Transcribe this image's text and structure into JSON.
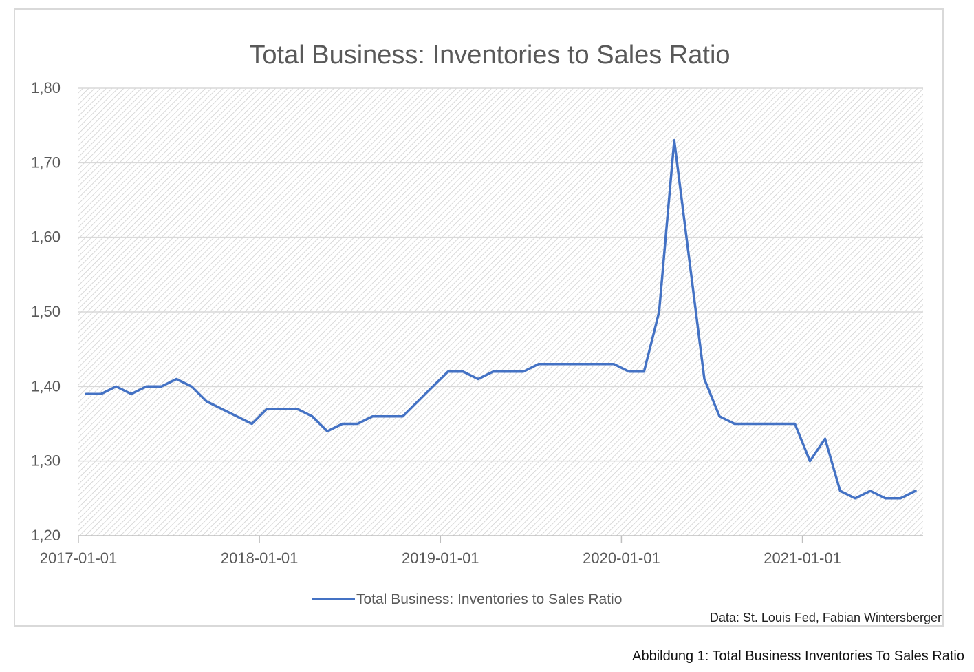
{
  "chart_data": {
    "type": "line",
    "title": "Total Business: Inventories to Sales Ratio",
    "xlabel": "",
    "ylabel": "",
    "ylim": [
      1.2,
      1.8
    ],
    "y_ticks": [
      "1,20",
      "1,30",
      "1,40",
      "1,50",
      "1,60",
      "1,70",
      "1,80"
    ],
    "y_tick_values": [
      1.2,
      1.3,
      1.4,
      1.5,
      1.6,
      1.7,
      1.8
    ],
    "x_ticks": [
      "2017-01-01",
      "2018-01-01",
      "2019-01-01",
      "2020-01-01",
      "2021-01-01"
    ],
    "x": [
      "2017-01-01",
      "2017-02-01",
      "2017-03-01",
      "2017-04-01",
      "2017-05-01",
      "2017-06-01",
      "2017-07-01",
      "2017-08-01",
      "2017-09-01",
      "2017-10-01",
      "2017-11-01",
      "2017-12-01",
      "2018-01-01",
      "2018-02-01",
      "2018-03-01",
      "2018-04-01",
      "2018-05-01",
      "2018-06-01",
      "2018-07-01",
      "2018-08-01",
      "2018-09-01",
      "2018-10-01",
      "2018-11-01",
      "2018-12-01",
      "2019-01-01",
      "2019-02-01",
      "2019-03-01",
      "2019-04-01",
      "2019-05-01",
      "2019-06-01",
      "2019-07-01",
      "2019-08-01",
      "2019-09-01",
      "2019-10-01",
      "2019-11-01",
      "2019-12-01",
      "2020-01-01",
      "2020-02-01",
      "2020-03-01",
      "2020-04-01",
      "2020-05-01",
      "2020-06-01",
      "2020-07-01",
      "2020-08-01",
      "2020-09-01",
      "2020-10-01",
      "2020-11-01",
      "2020-12-01",
      "2021-01-01",
      "2021-02-01",
      "2021-03-01",
      "2021-04-01",
      "2021-05-01",
      "2021-06-01",
      "2021-07-01",
      "2021-08-01"
    ],
    "series": [
      {
        "name": "Total Business: Inventories to Sales Ratio",
        "color": "#4472c4",
        "values": [
          1.39,
          1.39,
          1.4,
          1.39,
          1.4,
          1.4,
          1.41,
          1.4,
          1.38,
          1.37,
          1.36,
          1.35,
          1.37,
          1.37,
          1.37,
          1.36,
          1.34,
          1.35,
          1.35,
          1.36,
          1.36,
          1.36,
          1.38,
          1.4,
          1.42,
          1.42,
          1.41,
          1.42,
          1.42,
          1.42,
          1.43,
          1.43,
          1.43,
          1.43,
          1.43,
          1.43,
          1.42,
          1.42,
          1.5,
          1.73,
          1.57,
          1.41,
          1.36,
          1.35,
          1.35,
          1.35,
          1.35,
          1.35,
          1.3,
          1.33,
          1.26,
          1.25,
          1.26,
          1.25,
          1.25,
          1.26
        ]
      }
    ],
    "grid": true,
    "legend_position": "bottom",
    "source_note": "Data: St. Louis Fed, Fabian Wintersberger"
  },
  "caption": "Abbildung 1: Total Business Inventories To Sales Ratio"
}
